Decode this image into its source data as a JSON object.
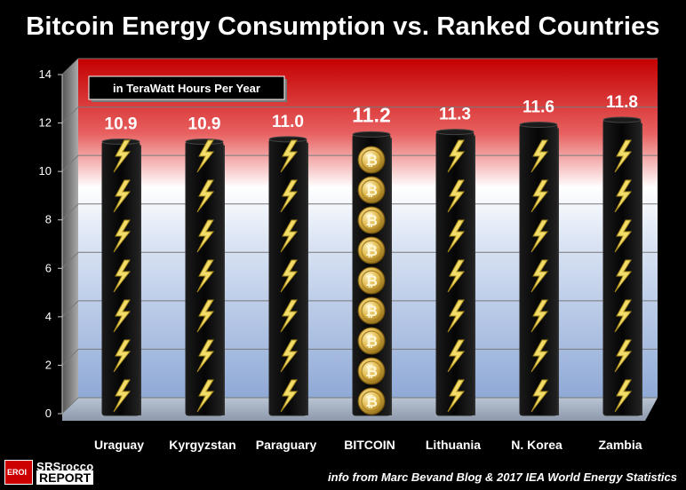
{
  "chart_data": {
    "type": "bar",
    "title": "Bitcoin Energy Consumption vs. Ranked Countries",
    "unit_label": "in TeraWatt Hours Per Year",
    "categories": [
      "Uraguay",
      "Kyrgyzstan",
      "Paraguary",
      "BITCOIN",
      "Lithuania",
      "N. Korea",
      "Zambia"
    ],
    "values": [
      10.9,
      10.9,
      11.0,
      11.2,
      11.3,
      11.6,
      11.8
    ],
    "value_labels": [
      "10.9",
      "10.9",
      "11.0",
      "11.2",
      "11.3",
      "11.6",
      "11.8"
    ],
    "highlight_category": "BITCOIN",
    "ylim": [
      0,
      14
    ],
    "yticks": [
      "0",
      "2",
      "4",
      "6",
      "8",
      "10",
      "12",
      "14"
    ],
    "grid": true,
    "background_gradient": [
      "#cc0000",
      "#ffffff",
      "#9fb6dd"
    ]
  },
  "source_note": "info from Marc Bevand Blog & 2017 IEA World Energy Statistics",
  "logo": {
    "badge_text": "EROI",
    "line1": "SRSrocco",
    "line2": "REPORT"
  }
}
